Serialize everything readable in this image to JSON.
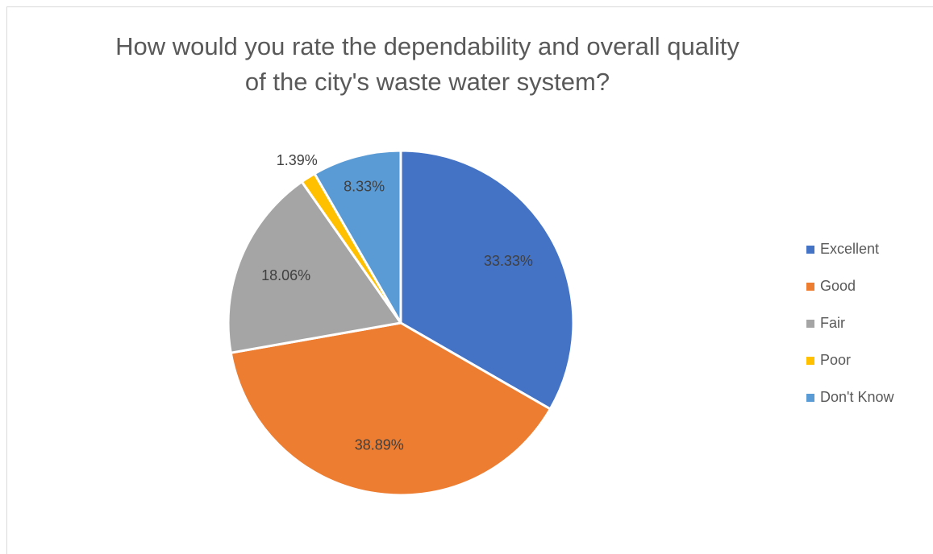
{
  "chart_data": {
    "type": "pie",
    "title_lines": [
      "How would you rate the dependability and overall quality",
      "of the city's waste water system?"
    ],
    "slices": [
      {
        "label": "Excellent",
        "value": 33.33,
        "value_label": "33.33%",
        "color": "#4472C4"
      },
      {
        "label": "Good",
        "value": 38.89,
        "value_label": "38.89%",
        "color": "#ED7D31"
      },
      {
        "label": "Fair",
        "value": 18.06,
        "value_label": "18.06%",
        "color": "#A5A5A5"
      },
      {
        "label": "Poor",
        "value": 1.39,
        "value_label": "1.39%",
        "color": "#FFC000"
      },
      {
        "label": "Don't Know",
        "value": 8.33,
        "value_label": "8.33%",
        "color": "#5B9BD5"
      }
    ],
    "start_angle": "12 o'clock",
    "direction": "clockwise",
    "legend_position": "right"
  }
}
